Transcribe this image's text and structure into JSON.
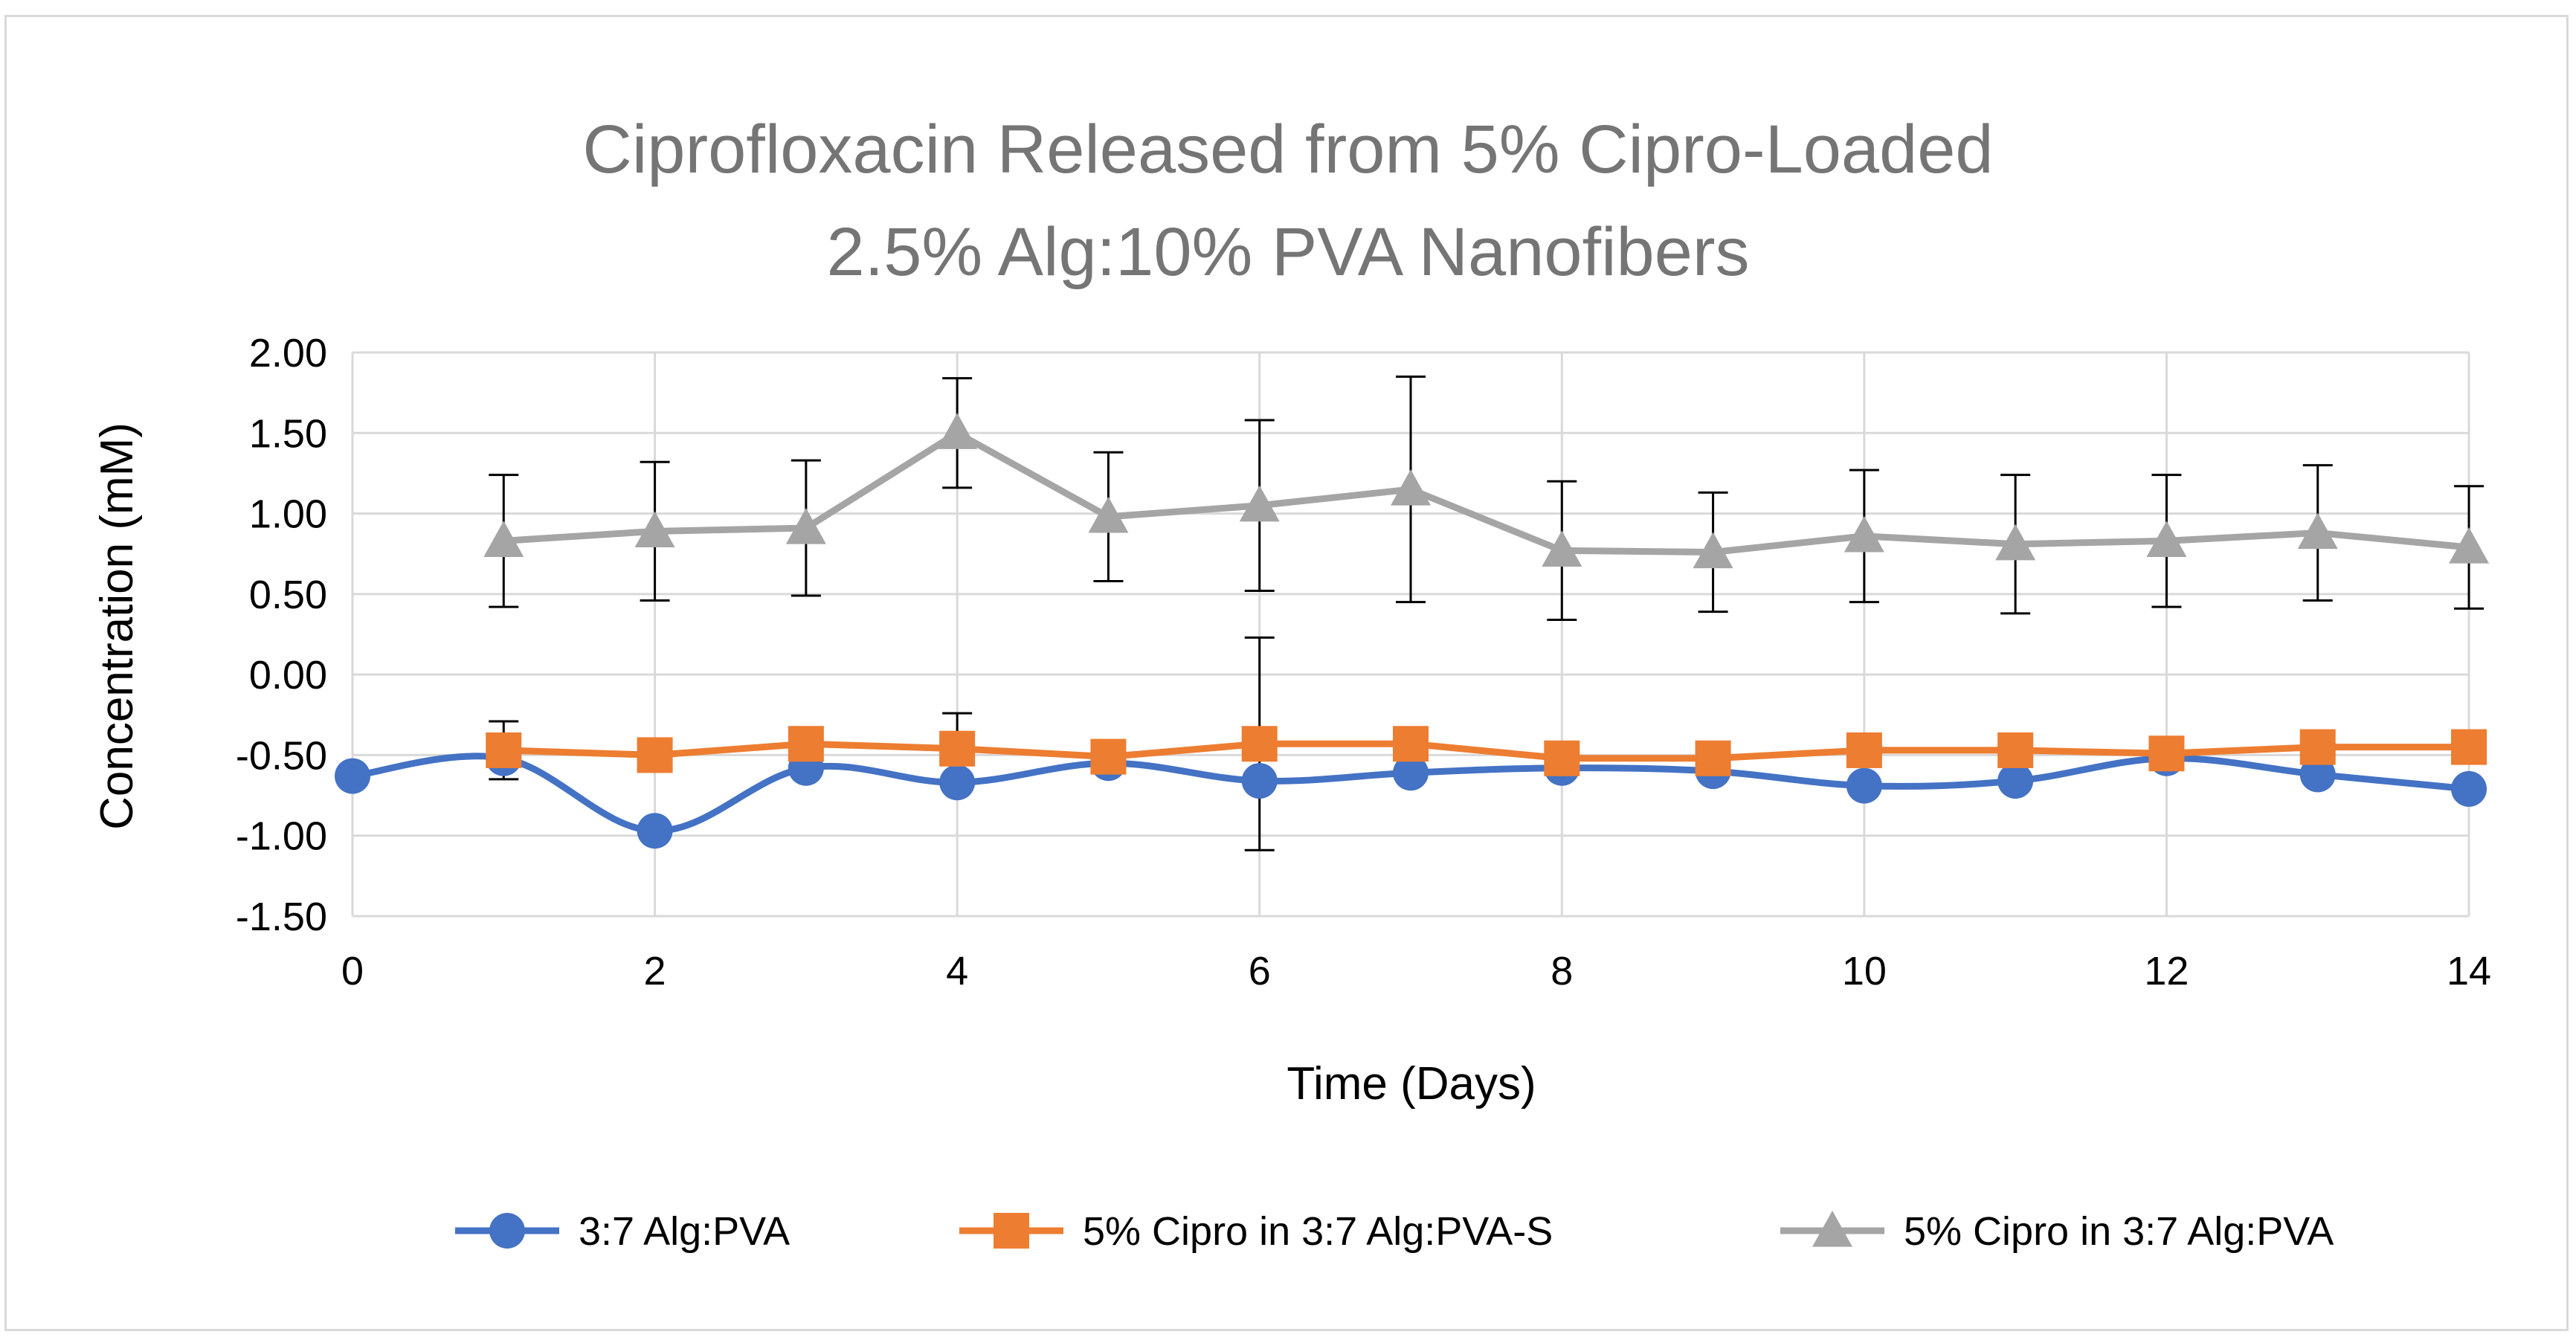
{
  "chart_data": {
    "type": "line",
    "title": [
      "Ciprofloxacin Released from 5% Cipro-Loaded",
      "2.5% Alg:10% PVA Nanofibers"
    ],
    "xlabel": "Time (Days)",
    "ylabel": "Concentration (mM)",
    "xlim": [
      0,
      14
    ],
    "ylim": [
      -1.5,
      2.0
    ],
    "x_ticks": [
      0,
      2,
      4,
      6,
      8,
      10,
      12,
      14
    ],
    "x_tick_labels": [
      "0",
      "2",
      "4",
      "6",
      "8",
      "10",
      "12",
      "14"
    ],
    "y_ticks": [
      2.0,
      1.5,
      1.0,
      0.5,
      0.0,
      -0.5,
      -1.0,
      -1.5
    ],
    "y_tick_labels": [
      "2.00",
      "1.50",
      "1.00",
      "0.50",
      "0.00",
      "-0.50",
      "-1.00",
      "-1.50"
    ],
    "grid": true,
    "legend_position": "bottom",
    "series": [
      {
        "name": "3:7 Alg:PVA",
        "color": "#4472c4",
        "marker": "circle",
        "smooth": true,
        "x": [
          0,
          1,
          2,
          3,
          4,
          5,
          6,
          7,
          8,
          9,
          10,
          11,
          12,
          13,
          14
        ],
        "y": [
          -0.63,
          -0.52,
          -0.97,
          -0.58,
          -0.67,
          -0.55,
          -0.66,
          -0.61,
          -0.58,
          -0.6,
          -0.69,
          -0.66,
          -0.52,
          -0.62,
          -0.71
        ]
      },
      {
        "name": "5% Cipro in 3:7 Alg:PVA-S",
        "color": "#ed7d31",
        "marker": "square",
        "smooth": false,
        "x": [
          1,
          2,
          3,
          4,
          5,
          6,
          7,
          8,
          9,
          10,
          11,
          12,
          13,
          14
        ],
        "y": [
          -0.47,
          -0.5,
          -0.43,
          -0.46,
          -0.51,
          -0.43,
          -0.43,
          -0.52,
          -0.52,
          -0.47,
          -0.47,
          -0.49,
          -0.45,
          -0.45
        ],
        "error": [
          0.18,
          0,
          0,
          0.22,
          0,
          0.66,
          0,
          0,
          0,
          0,
          0,
          0,
          0,
          0
        ]
      },
      {
        "name": "5% Cipro in 3:7 Alg:PVA",
        "color": "#a5a5a5",
        "marker": "triangle",
        "smooth": false,
        "x": [
          1,
          2,
          3,
          4,
          5,
          6,
          7,
          8,
          9,
          10,
          11,
          12,
          13,
          14
        ],
        "y": [
          0.83,
          0.89,
          0.91,
          1.5,
          0.98,
          1.05,
          1.15,
          0.77,
          0.76,
          0.86,
          0.81,
          0.83,
          0.88,
          0.79
        ],
        "error": [
          0.41,
          0.43,
          0.42,
          0.34,
          0.4,
          0.53,
          0.7,
          0.43,
          0.37,
          0.41,
          0.43,
          0.41,
          0.42,
          0.38
        ]
      }
    ]
  }
}
